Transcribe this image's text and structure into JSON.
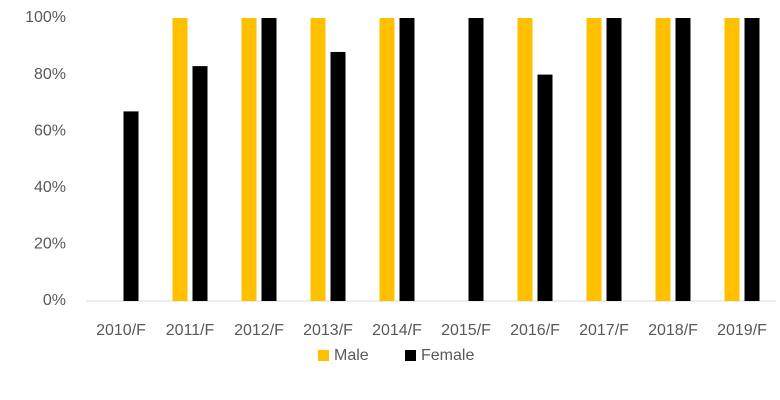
{
  "chart_data": {
    "type": "bar",
    "categories": [
      "2010/F",
      "2011/F",
      "2012/F",
      "2013/F",
      "2014/F",
      "2015/F",
      "2016/F",
      "2017/F",
      "2018/F",
      "2019/F"
    ],
    "series": [
      {
        "name": "Male",
        "color": "#ffc000",
        "values": [
          0,
          100,
          100,
          100,
          100,
          0,
          100,
          100,
          100,
          100
        ]
      },
      {
        "name": "Female",
        "color": "#000000",
        "values": [
          67,
          83,
          100,
          88,
          100,
          100,
          80,
          100,
          100,
          100
        ]
      }
    ],
    "ylim": [
      0,
      100
    ],
    "yticks": [
      {
        "value": 0,
        "label": "0%"
      },
      {
        "value": 20,
        "label": "20%"
      },
      {
        "value": 40,
        "label": "40%"
      },
      {
        "value": 60,
        "label": "60%"
      },
      {
        "value": 80,
        "label": "80%"
      },
      {
        "value": 100,
        "label": "100%"
      }
    ],
    "grid": false,
    "legend": "bottom"
  }
}
